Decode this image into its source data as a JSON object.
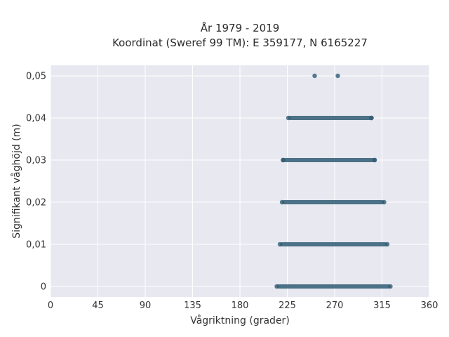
{
  "chart_data": {
    "type": "scatter",
    "title": "År 1979 - 2019",
    "subtitle": "Koordinat (Sweref 99 TM): E 359177, N 6165227",
    "xlabel": "Vågriktning (grader)",
    "ylabel": "Signifikant våghöjd (m)",
    "xlim": [
      0,
      360
    ],
    "ylim": [
      -0.0025,
      0.0525
    ],
    "x_ticks": [
      0,
      45,
      90,
      135,
      180,
      225,
      270,
      315,
      360
    ],
    "x_tick_labels": [
      "0",
      "45",
      "90",
      "135",
      "180",
      "225",
      "270",
      "315",
      "360"
    ],
    "y_ticks": [
      0,
      0.01,
      0.02,
      0.03,
      0.04,
      0.05
    ],
    "y_tick_labels": [
      "0",
      "0,01",
      "0,02",
      "0,03",
      "0,04",
      "0,05"
    ],
    "grid": true,
    "legend": "none",
    "point_color": "#2f5a73",
    "background_color": "#e8e8f0",
    "series": [
      {
        "bands": [
          {
            "y": 0.0,
            "x_min": 215,
            "x_max": 323
          },
          {
            "y": 0.01,
            "x_min": 218,
            "x_max": 320
          },
          {
            "y": 0.02,
            "x_min": 220,
            "x_max": 317
          },
          {
            "y": 0.03,
            "x_min": 221,
            "x_max": 308
          },
          {
            "y": 0.04,
            "x_min": 226,
            "x_max": 305
          }
        ],
        "points": [
          {
            "x": 251,
            "y": 0.05
          },
          {
            "x": 273,
            "y": 0.05
          },
          {
            "x": 305,
            "y": 0.04
          },
          {
            "x": 221,
            "y": 0.03
          },
          {
            "x": 308,
            "y": 0.03
          }
        ]
      }
    ]
  }
}
